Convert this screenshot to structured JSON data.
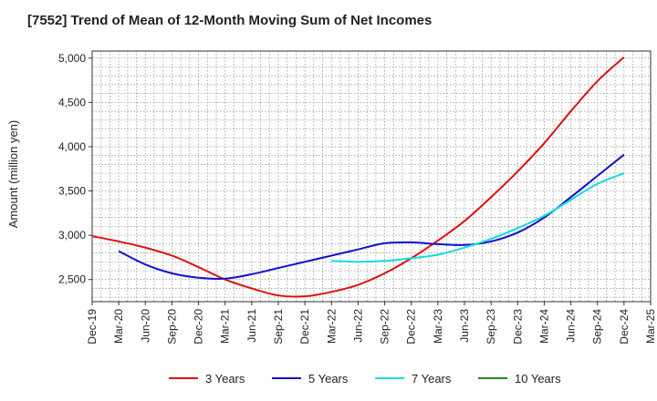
{
  "chart_data": {
    "type": "line",
    "title": "[7552]  Trend of Mean of 12-Month Moving Sum of Net Incomes",
    "ylabel": "Amount (million yen)",
    "xlabel": "",
    "ylim": [
      2250,
      5080
    ],
    "yticks": [
      2500,
      3000,
      3500,
      4000,
      4500,
      5000
    ],
    "ytick_labels": [
      "2,500",
      "3,000",
      "3,500",
      "4,000",
      "4,500",
      "5,000"
    ],
    "x_tick_labels": [
      "Dec-19",
      "Mar-20",
      "Jun-20",
      "Sep-20",
      "Dec-20",
      "Mar-21",
      "Jun-21",
      "Sep-21",
      "Dec-21",
      "Mar-22",
      "Jun-22",
      "Sep-22",
      "Dec-22",
      "Mar-23",
      "Jun-23",
      "Sep-23",
      "Dec-23",
      "Mar-24",
      "Jun-24",
      "Sep-24",
      "Dec-24",
      "Mar-25"
    ],
    "grid": true,
    "legend_position": "bottom",
    "series": [
      {
        "name": "3 Years",
        "color": "#dd1111",
        "x": [
          "Dec-19",
          "Mar-20",
          "Jun-20",
          "Sep-20",
          "Dec-20",
          "Mar-21",
          "Jun-21",
          "Sep-21",
          "Dec-21",
          "Mar-22",
          "Jun-22",
          "Sep-22",
          "Dec-22",
          "Mar-23",
          "Jun-23",
          "Sep-23",
          "Dec-23",
          "Mar-24",
          "Jun-24",
          "Sep-24",
          "Dec-24"
        ],
        "values": [
          2990,
          2930,
          2860,
          2770,
          2640,
          2500,
          2400,
          2320,
          2310,
          2360,
          2440,
          2570,
          2740,
          2940,
          3160,
          3430,
          3720,
          4040,
          4400,
          4740,
          5010
        ]
      },
      {
        "name": "5 Years",
        "color": "#1111cc",
        "x": [
          "Mar-20",
          "Jun-20",
          "Sep-20",
          "Dec-20",
          "Mar-21",
          "Jun-21",
          "Sep-21",
          "Dec-21",
          "Mar-22",
          "Jun-22",
          "Sep-22",
          "Dec-22",
          "Mar-23",
          "Jun-23",
          "Sep-23",
          "Dec-23",
          "Mar-24",
          "Jun-24",
          "Sep-24",
          "Dec-24"
        ],
        "values": [
          2820,
          2670,
          2570,
          2520,
          2510,
          2560,
          2630,
          2700,
          2770,
          2840,
          2910,
          2920,
          2900,
          2890,
          2930,
          3030,
          3200,
          3430,
          3670,
          3910
        ]
      },
      {
        "name": "7 Years",
        "color": "#11dddd",
        "x": [
          "Mar-22",
          "Jun-22",
          "Sep-22",
          "Dec-22",
          "Mar-23",
          "Jun-23",
          "Sep-23",
          "Dec-23",
          "Mar-24",
          "Jun-24",
          "Sep-24",
          "Dec-24"
        ],
        "values": [
          2710,
          2700,
          2710,
          2740,
          2780,
          2860,
          2960,
          3080,
          3220,
          3400,
          3580,
          3700
        ]
      },
      {
        "name": "10 Years",
        "color": "#228822",
        "x": [],
        "values": []
      }
    ]
  }
}
